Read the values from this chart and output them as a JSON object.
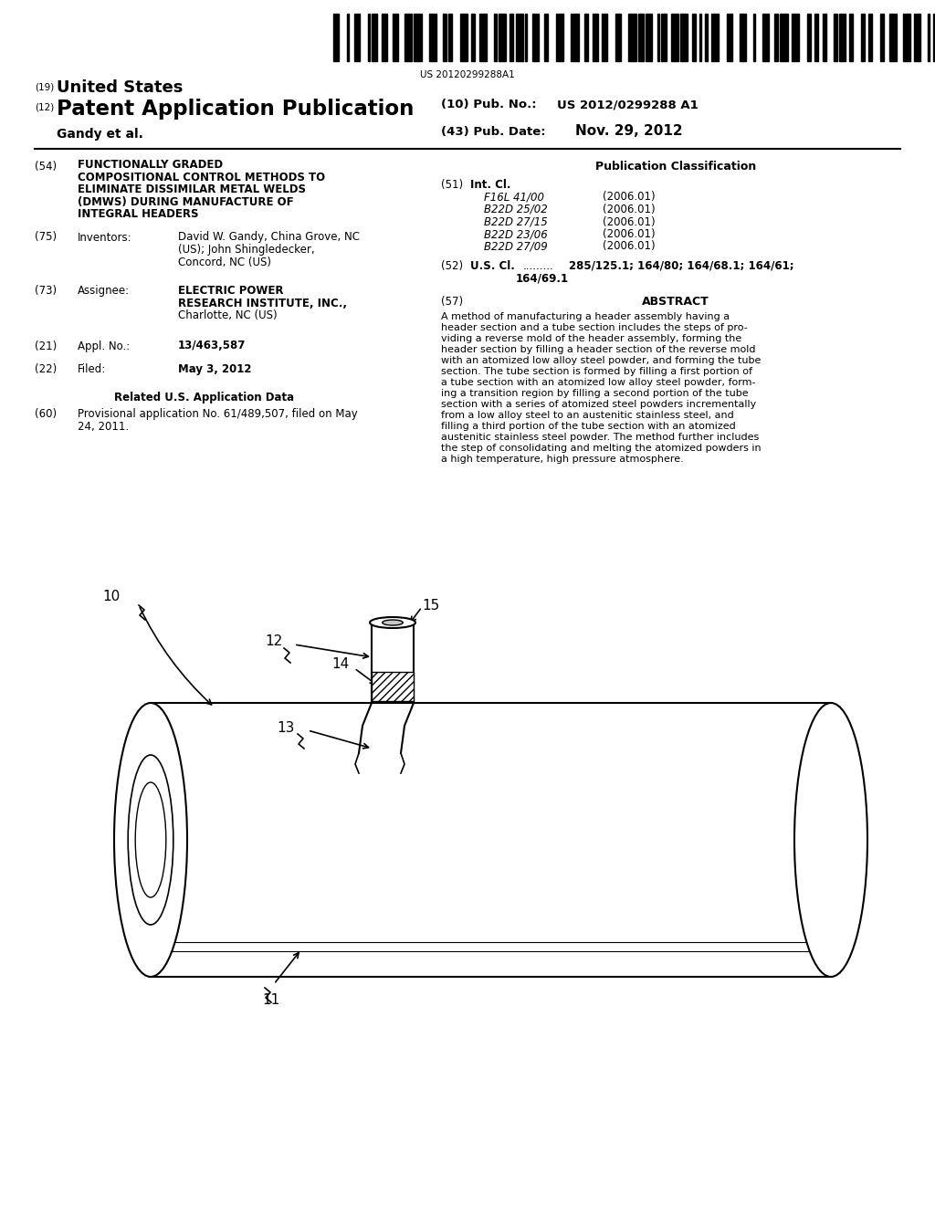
{
  "background_color": "#ffffff",
  "barcode_text": "US 20120299288A1",
  "header_left_19_text": "United States",
  "header_left_12_text": "Patent Application Publication",
  "header_author": "Gandy et al.",
  "header_right_10_val": "US 2012/0299288 A1",
  "header_right_43_val": "Nov. 29, 2012",
  "field54_title_lines": [
    "FUNCTIONALLY GRADED",
    "COMPOSITIONAL CONTROL METHODS TO",
    "ELIMINATE DISSIMILAR METAL WELDS",
    "(DMWS) DURING MANUFACTURE OF",
    "INTEGRAL HEADERS"
  ],
  "field75_text_lines": [
    "David W. Gandy, China Grove, NC",
    "(US); John Shingledecker,",
    "Concord, NC (US)"
  ],
  "field73_text_lines": [
    "ELECTRIC POWER",
    "RESEARCH INSTITUTE, INC.,",
    "Charlotte, NC (US)"
  ],
  "field21_text": "13/463,587",
  "field22_text": "May 3, 2012",
  "field60_text_lines": [
    "Provisional application No. 61/489,507, filed on May",
    "24, 2011."
  ],
  "int_cl": [
    [
      "F16L 41/00",
      "(2006.01)"
    ],
    [
      "B22D 25/02",
      "(2006.01)"
    ],
    [
      "B22D 27/15",
      "(2006.01)"
    ],
    [
      "B22D 23/06",
      "(2006.01)"
    ],
    [
      "B22D 27/09",
      "(2006.01)"
    ]
  ],
  "field52_text_lines": [
    "285/125.1; 164/80; 164/68.1; 164/61;",
    "164/69.1"
  ],
  "abstract_lines": [
    "A method of manufacturing a header assembly having a",
    "header section and a tube section includes the steps of pro-",
    "viding a reverse mold of the header assembly, forming the",
    "header section by filling a header section of the reverse mold",
    "with an atomized low alloy steel powder, and forming the tube",
    "section. The tube section is formed by filling a first portion of",
    "a tube section with an atomized low alloy steel powder, form-",
    "ing a transition region by filling a second portion of the tube",
    "section with a series of atomized steel powders incrementally",
    "from a low alloy steel to an austenitic stainless steel, and",
    "filling a third portion of the tube section with an atomized",
    "austenitic stainless steel powder. The method further includes",
    "the step of consolidating and melting the atomized powders in",
    "a high temperature, high pressure atmosphere."
  ]
}
